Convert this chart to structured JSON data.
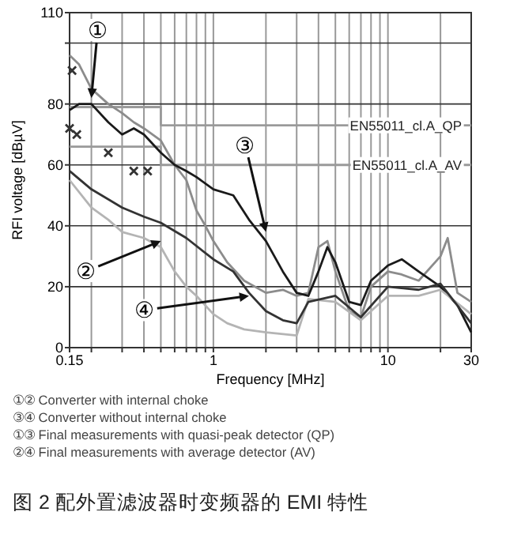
{
  "chart_data": {
    "type": "line",
    "xlabel": "Frequency [MHz]",
    "ylabel": "RFI voltage [dBµV]",
    "log": "x",
    "grid": true,
    "xlim": [
      0.15,
      30
    ],
    "ylim": [
      0,
      110
    ],
    "xticks": [
      0.15,
      {
        "value": 0.2,
        "label": null
      },
      {
        "value": 0.3,
        "label": null
      },
      {
        "value": 0.4,
        "label": null
      },
      {
        "value": 0.5,
        "label": null
      },
      {
        "value": 0.6,
        "label": null
      },
      {
        "value": 0.7,
        "label": null
      },
      {
        "value": 0.8,
        "label": null
      },
      {
        "value": 0.9,
        "label": null
      },
      1,
      {
        "value": 2,
        "label": null
      },
      {
        "value": 3,
        "label": null
      },
      {
        "value": 4,
        "label": null
      },
      {
        "value": 5,
        "label": null
      },
      {
        "value": 6,
        "label": null
      },
      {
        "value": 7,
        "label": null
      },
      {
        "value": 8,
        "label": null
      },
      {
        "value": 9,
        "label": null
      },
      10,
      {
        "value": 20,
        "label": null
      },
      30
    ],
    "yticks": [
      0,
      20,
      40,
      60,
      80,
      {
        "value": 100,
        "label": null
      },
      110
    ],
    "series": [
      {
        "name": "EN55011_cl.A_QP",
        "color": "#9a9a9a",
        "x": [
          0.15,
          0.5,
          0.5,
          30
        ],
        "values": [
          79,
          79,
          73,
          73
        ]
      },
      {
        "name": "EN55011_cl.A_AV",
        "color": "#9a9a9a",
        "x": [
          0.15,
          0.5,
          0.5,
          30
        ],
        "values": [
          66,
          66,
          60,
          60
        ]
      },
      {
        "color": "#8c8c8c",
        "x": [
          0.15,
          0.17,
          0.2,
          0.25,
          0.3,
          0.35,
          0.4,
          0.5,
          0.6,
          0.7,
          0.8,
          0.9,
          1,
          1.2,
          1.5,
          2,
          2.5,
          3,
          3.5,
          4,
          4.5,
          5,
          6,
          7,
          8,
          10,
          12,
          15,
          20,
          22,
          25,
          30
        ],
        "values": [
          96,
          93,
          85,
          80,
          77,
          74,
          72,
          68,
          60,
          55,
          45,
          40,
          35,
          28,
          22,
          18,
          19,
          17,
          18,
          33,
          35,
          25,
          12,
          10,
          20,
          25,
          24,
          22,
          30,
          36,
          18,
          15
        ]
      },
      {
        "color": "#1a1a1a",
        "x": [
          0.15,
          0.17,
          0.2,
          0.25,
          0.3,
          0.35,
          0.4,
          0.5,
          0.6,
          0.7,
          0.8,
          1,
          1.3,
          1.6,
          2,
          2.5,
          3,
          3.5,
          4,
          4.5,
          5,
          6,
          7,
          8,
          10,
          12,
          15,
          20,
          25,
          30
        ],
        "values": [
          78,
          80,
          80,
          74,
          70,
          72,
          70,
          64,
          60,
          58,
          56,
          52,
          50,
          42,
          35,
          25,
          18,
          17,
          25,
          33,
          28,
          15,
          14,
          22,
          27,
          29,
          25,
          20,
          14,
          5
        ]
      },
      {
        "color": "#b4b4b4",
        "x": [
          0.15,
          0.2,
          0.25,
          0.3,
          0.4,
          0.5,
          0.6,
          0.7,
          0.8,
          1,
          1.2,
          1.5,
          2,
          3,
          3.5,
          5,
          7,
          10,
          15,
          20,
          30
        ],
        "values": [
          55,
          46,
          42,
          38,
          36,
          33,
          25,
          20,
          17,
          11,
          8,
          6,
          5,
          4,
          16,
          15,
          9,
          17,
          17,
          19,
          11
        ]
      },
      {
        "color": "#333333",
        "x": [
          0.15,
          0.2,
          0.3,
          0.4,
          0.5,
          0.7,
          1,
          1.3,
          1.6,
          2,
          2.5,
          3,
          3.5,
          5,
          7,
          10,
          15,
          20,
          30
        ],
        "values": [
          58,
          52,
          46,
          43,
          41,
          36,
          29,
          25,
          18,
          12,
          9,
          8,
          15,
          17,
          10,
          20,
          19,
          21,
          8
        ]
      },
      {
        "type": "scatter",
        "marker": "cross",
        "color": "#333333",
        "x": [
          0.155,
          0.15,
          0.165,
          0.25,
          0.35,
          0.42
        ],
        "values": [
          91,
          72,
          70,
          64,
          58,
          58
        ]
      }
    ],
    "annotations": [
      {
        "text": "①",
        "x": 0.2,
        "y": 82
      },
      {
        "text": "②",
        "x": 0.5,
        "y": 35
      },
      {
        "text": "③",
        "x": 2,
        "y": 38
      },
      {
        "text": "④",
        "x": 1.6,
        "y": 17
      },
      "①② Converter with internal choke",
      "③④ Converter without internal choke",
      "①③ Final measurements with quasi-peak detector (QP)",
      "②④ Final measurements with average detector (AV)",
      "图 2 配外置滤波器时变频器的 EMI 特性"
    ]
  }
}
